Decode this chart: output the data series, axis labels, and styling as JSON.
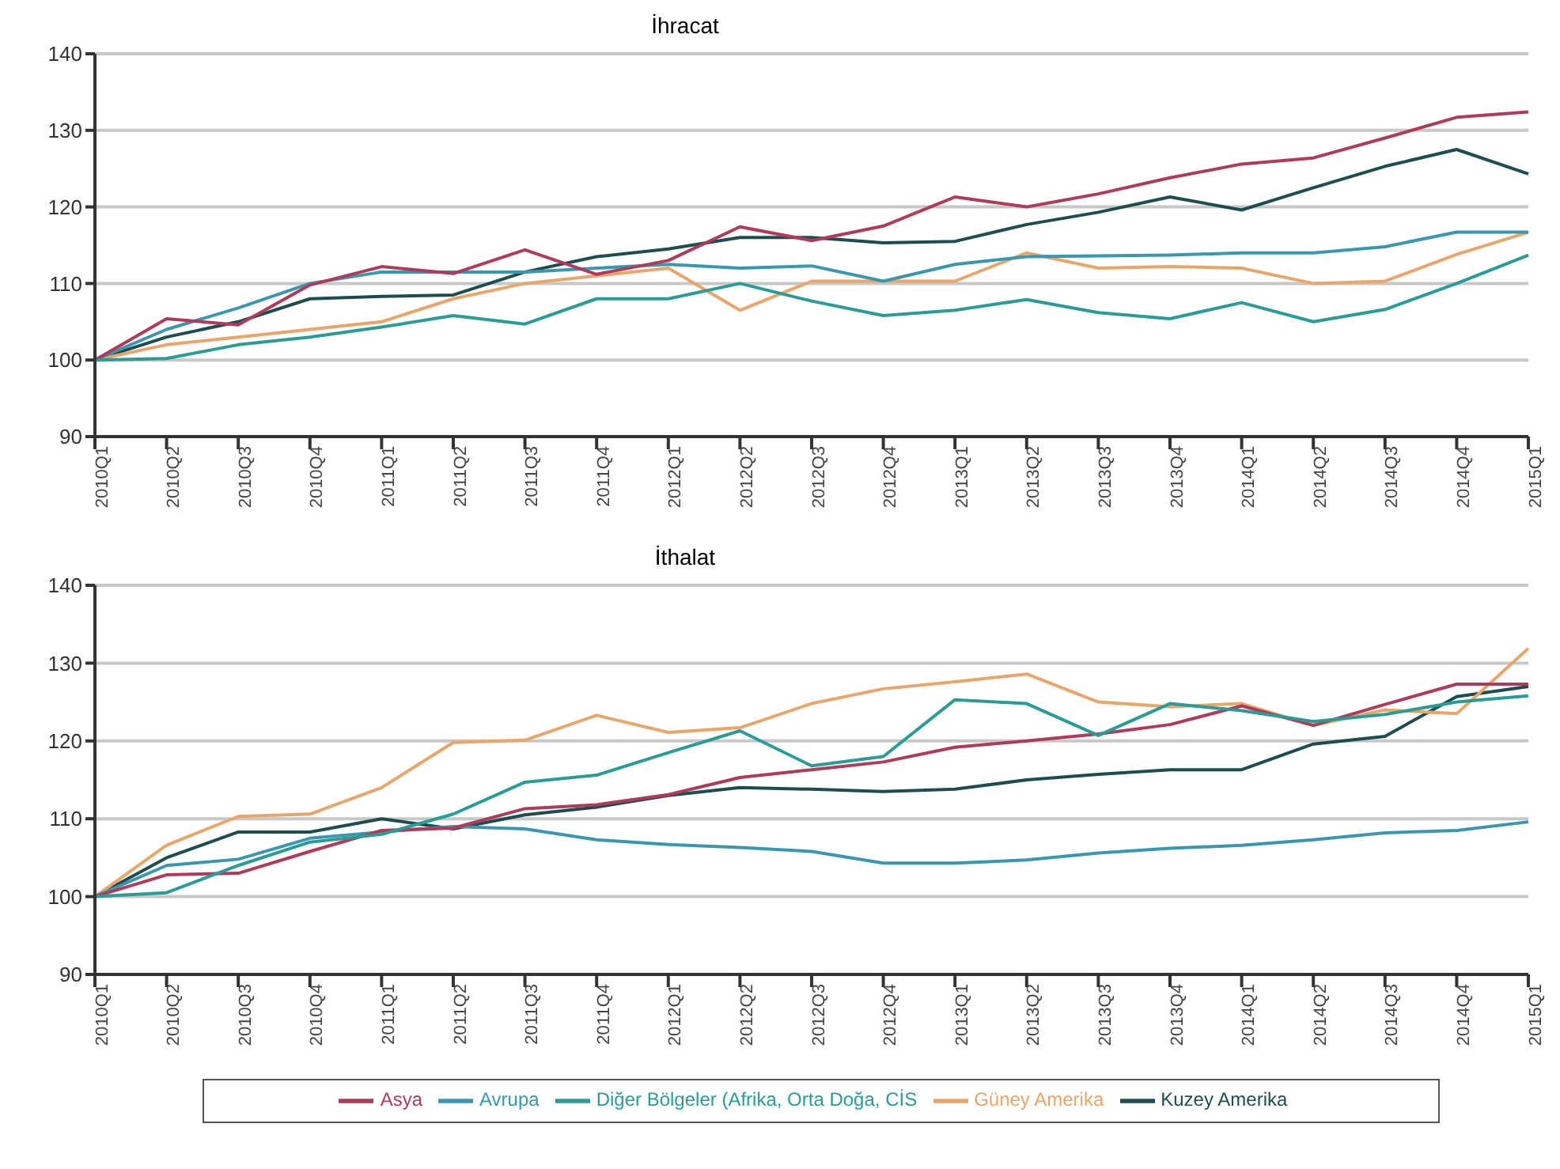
{
  "chart_data": [
    {
      "type": "line",
      "title": "İhracat",
      "categories": [
        "2010Q1",
        "2010Q2",
        "2010Q3",
        "2010Q4",
        "2011Q1",
        "2011Q2",
        "2011Q3",
        "2011Q4",
        "2012Q1",
        "2012Q2",
        "2012Q3",
        "2012Q4",
        "2013Q1",
        "2013Q2",
        "2013Q3",
        "2013Q4",
        "2014Q1",
        "2014Q2",
        "2014Q3",
        "2014Q4",
        "2015Q1"
      ],
      "ylim": [
        90,
        140
      ],
      "yticks": [
        90,
        100,
        110,
        120,
        130,
        140
      ],
      "grid": "y",
      "legend": false,
      "series": [
        {
          "color": "#1e4d4f",
          "values": [
            100,
            103,
            105,
            108,
            108.3,
            108.5,
            111.5,
            113.5,
            114.5,
            116,
            116,
            115.3,
            115.5,
            117.7,
            119.3,
            121.3,
            119.6,
            122.5,
            125.3,
            127.5,
            124.3
          ]
        },
        {
          "color": "#e8a66a",
          "values": [
            100,
            102,
            103,
            104,
            105,
            108,
            110,
            111,
            112,
            106.5,
            110.3,
            110.3,
            110.3,
            114,
            112,
            112.2,
            112,
            110,
            110.3,
            113.8,
            116.7
          ]
        },
        {
          "color": "#3a97b0",
          "values": [
            100,
            104,
            106.8,
            110,
            111.5,
            111.5,
            111.5,
            112,
            112.5,
            112,
            112.3,
            110.3,
            112.5,
            113.5,
            113.6,
            113.7,
            114,
            114,
            114.8,
            116.7,
            116.7
          ]
        },
        {
          "color": "#b03a5a",
          "values": [
            100,
            105.4,
            104.6,
            109.8,
            112.2,
            111.3,
            114.4,
            111.2,
            113,
            117.4,
            115.6,
            117.5,
            121.3,
            120,
            121.7,
            123.8,
            125.6,
            126.4,
            129,
            131.7,
            132.4
          ]
        },
        {
          "color": "#2a9c96",
          "values": [
            100,
            100.2,
            102,
            103,
            104.3,
            105.8,
            104.7,
            108,
            108,
            110,
            107.7,
            105.8,
            106.5,
            107.9,
            106.2,
            105.4,
            107.5,
            105,
            106.6,
            110,
            113.7
          ]
        }
      ]
    },
    {
      "type": "line",
      "title": "İthalat",
      "categories": [
        "2010Q1",
        "2010Q2",
        "2010Q3",
        "2010Q4",
        "2011Q1",
        "2011Q2",
        "2011Q3",
        "2011Q4",
        "2012Q1",
        "2012Q2",
        "2012Q3",
        "2012Q4",
        "2013Q1",
        "2013Q2",
        "2013Q3",
        "2013Q4",
        "2014Q1",
        "2014Q2",
        "2014Q3",
        "2014Q4",
        "2015Q1"
      ],
      "ylim": [
        90,
        140
      ],
      "yticks": [
        90,
        100,
        110,
        120,
        130,
        140
      ],
      "grid": "y",
      "legend": "bottom",
      "series": [
        {
          "name": "Kuzey Amerika",
          "color": "#1e4d4f",
          "values": [
            100,
            105,
            108.3,
            108.3,
            110,
            108.7,
            110.5,
            111.5,
            113,
            114,
            113.8,
            113.5,
            113.8,
            115,
            115.7,
            116.3,
            116.3,
            119.6,
            120.6,
            125.7,
            127
          ]
        },
        {
          "name": "Güney Amerika",
          "color": "#e8a66a",
          "values": [
            100,
            106.6,
            110.3,
            110.6,
            114,
            119.8,
            120.1,
            123.3,
            121.1,
            121.7,
            124.8,
            126.7,
            127.6,
            128.6,
            125,
            124.4,
            124.8,
            122,
            124,
            123.5,
            131.9
          ]
        },
        {
          "name": "Avrupa",
          "color": "#3a97b0",
          "values": [
            100,
            104,
            104.8,
            107.5,
            108.3,
            109,
            108.7,
            107.3,
            106.7,
            106.3,
            105.8,
            104.3,
            104.3,
            104.7,
            105.6,
            106.2,
            106.6,
            107.3,
            108.2,
            108.5,
            109.6
          ]
        },
        {
          "name": "Asya",
          "color": "#b03a5a",
          "values": [
            100,
            102.8,
            103,
            105.8,
            108.5,
            108.8,
            111.3,
            111.8,
            113.1,
            115.3,
            116.3,
            117.3,
            119.2,
            120,
            120.9,
            122.1,
            124.5,
            122,
            124.7,
            127.3,
            127.3
          ]
        },
        {
          "name": "Diğer Bölgeler (Afrika, Orta Doğa, CİS",
          "color": "#2a9c96",
          "values": [
            100,
            100.5,
            104,
            107,
            108,
            110.6,
            114.7,
            115.6,
            118.5,
            121.3,
            116.8,
            118,
            125.3,
            124.8,
            120.7,
            124.8,
            123.9,
            122.5,
            123.4,
            125,
            125.8
          ]
        }
      ]
    }
  ]
}
